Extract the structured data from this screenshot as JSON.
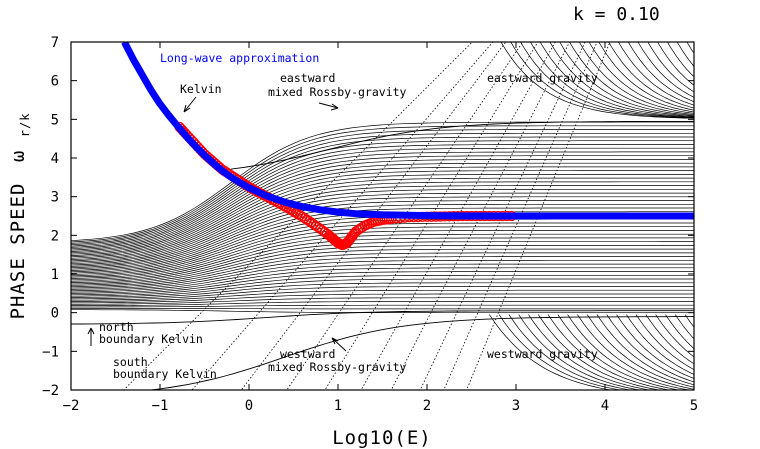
{
  "chart_data": {
    "type": "line",
    "header_label": "k = 0.10",
    "xlabel": "Log10(E)",
    "ylabel_main": "PHASE SPEED",
    "ylabel_symbol": "ω",
    "ylabel_sub": "r/k",
    "xlim": [
      -2,
      5
    ],
    "ylim": [
      -2,
      7
    ],
    "x_ticks": [
      -2,
      -1,
      0,
      1,
      2,
      3,
      4,
      5
    ],
    "x_tick_labels": [
      "−2",
      "−1",
      "0",
      "1",
      "2",
      "3",
      "4",
      "5"
    ],
    "y_ticks": [
      -2,
      -1,
      0,
      1,
      2,
      3,
      4,
      5,
      6,
      7
    ],
    "y_tick_labels": [
      "−2",
      "−1",
      "0",
      "1",
      "2",
      "3",
      "4",
      "5",
      "6",
      "7"
    ],
    "grid": false,
    "annotations": {
      "long_wave": "Long-wave approximation",
      "kelvin": "Kelvin",
      "eastward_mrg_1": "eastward",
      "eastward_mrg_2": "mixed Rossby-gravity",
      "eastward_gravity": "eastward gravity",
      "north_kelvin_1": "north",
      "north_kelvin_2": "boundary Kelvin",
      "south_kelvin_1": "south",
      "south_kelvin_2": "boundary Kelvin",
      "westward_mrg_1": "westward",
      "westward_mrg_2": "mixed Rossby-gravity",
      "westward_gravity": "westward gravity"
    },
    "series": [
      {
        "role": "long-wave approximation",
        "color": "#0000ff",
        "x": [
          -1.4,
          -1.3,
          -1.2,
          -1.1,
          -1.0,
          -0.9,
          -0.8,
          -0.7,
          -0.6,
          -0.5,
          -0.4,
          -0.3,
          -0.2,
          -0.1,
          0.0,
          0.2,
          0.4,
          0.6,
          0.8,
          1.0,
          1.2,
          1.5,
          2.0,
          2.5,
          3.0,
          3.5,
          4.0,
          4.5,
          5.0
        ],
        "y": [
          7.0,
          6.55,
          6.15,
          5.75,
          5.4,
          5.1,
          4.82,
          4.55,
          4.3,
          4.07,
          3.86,
          3.67,
          3.5,
          3.36,
          3.23,
          3.02,
          2.86,
          2.74,
          2.66,
          2.6,
          2.56,
          2.53,
          2.51,
          2.5,
          2.5,
          2.5,
          2.5,
          2.5,
          2.5
        ]
      },
      {
        "role": "Kelvin (computed, circles)",
        "color": "#ff0000",
        "x": [
          -0.78,
          -0.7,
          -0.6,
          -0.5,
          -0.4,
          -0.3,
          -0.2,
          -0.1,
          0.0,
          0.1,
          0.2,
          0.3,
          0.4,
          0.5,
          0.6,
          0.7,
          0.8,
          0.9,
          0.95,
          1.0,
          1.05,
          1.1,
          1.15,
          1.2,
          1.3,
          1.4,
          1.5,
          1.6,
          1.8,
          2.0,
          2.2,
          2.4,
          2.6,
          2.8,
          3.0
        ],
        "y": [
          4.8,
          4.6,
          4.35,
          4.1,
          3.9,
          3.7,
          3.55,
          3.4,
          3.25,
          3.12,
          3.0,
          2.88,
          2.75,
          2.62,
          2.48,
          2.33,
          2.17,
          2.0,
          1.9,
          1.8,
          1.75,
          1.8,
          1.95,
          2.1,
          2.25,
          2.35,
          2.4,
          2.43,
          2.47,
          2.48,
          2.49,
          2.5,
          2.5,
          2.5,
          2.5
        ]
      }
    ]
  }
}
